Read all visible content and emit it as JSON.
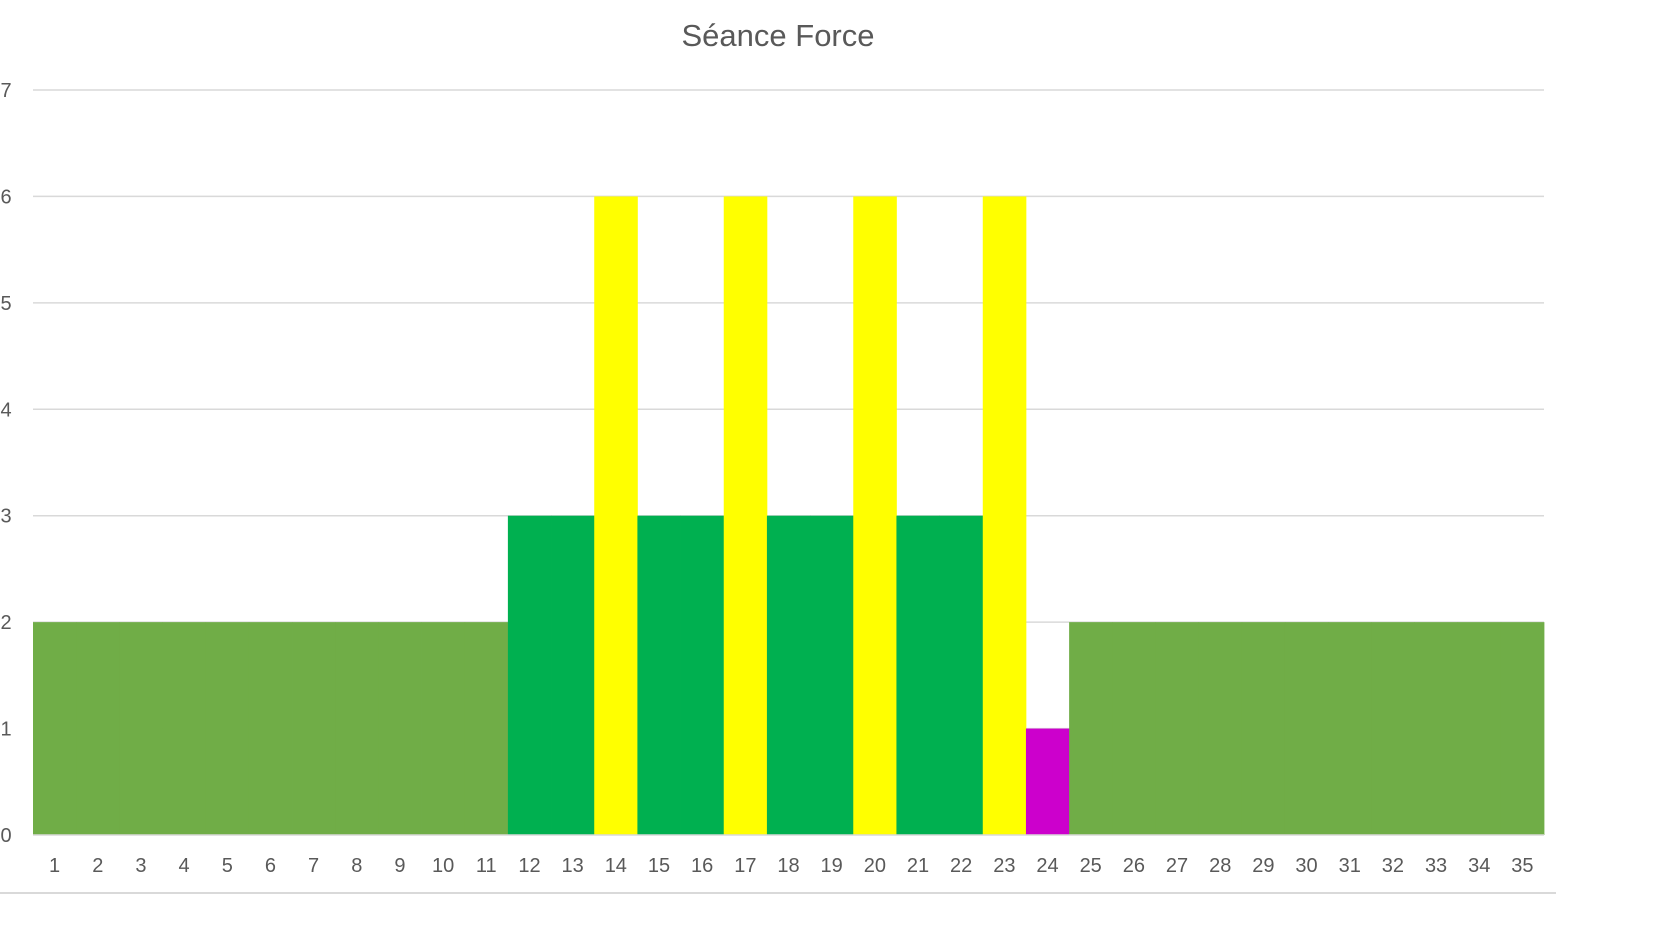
{
  "chart_data": {
    "type": "bar",
    "title": "Séance Force",
    "categories": [
      "1",
      "2",
      "3",
      "4",
      "5",
      "6",
      "7",
      "8",
      "9",
      "10",
      "11",
      "12",
      "13",
      "14",
      "15",
      "16",
      "17",
      "18",
      "19",
      "20",
      "21",
      "22",
      "23",
      "24",
      "25",
      "26",
      "27",
      "28",
      "29",
      "30",
      "31",
      "32",
      "33",
      "34",
      "35"
    ],
    "values": [
      2,
      2,
      2,
      2,
      2,
      2,
      2,
      2,
      2,
      2,
      2,
      3,
      3,
      6,
      3,
      3,
      6,
      3,
      3,
      6,
      3,
      3,
      6,
      1,
      2,
      2,
      2,
      2,
      2,
      2,
      2,
      2,
      2,
      2,
      2
    ],
    "bar_colors": [
      "#70AD47",
      "#70AD47",
      "#70AD47",
      "#70AD47",
      "#70AD47",
      "#70AD47",
      "#70AD47",
      "#70AD47",
      "#70AD47",
      "#70AD47",
      "#70AD47",
      "#00B050",
      "#00B050",
      "#FFFF00",
      "#00B050",
      "#00B050",
      "#FFFF00",
      "#00B050",
      "#00B050",
      "#FFFF00",
      "#00B050",
      "#00B050",
      "#FFFF00",
      "#CC00CC",
      "#70AD47",
      "#70AD47",
      "#70AD47",
      "#70AD47",
      "#70AD47",
      "#70AD47",
      "#70AD47",
      "#70AD47",
      "#70AD47",
      "#70AD47",
      "#70AD47"
    ],
    "yticks": [
      "0",
      "1",
      "2",
      "3",
      "4",
      "5",
      "6",
      "7"
    ],
    "ylim": [
      0,
      7
    ],
    "xlabel": "",
    "ylabel": "",
    "grid": true,
    "gap_width": 0
  }
}
